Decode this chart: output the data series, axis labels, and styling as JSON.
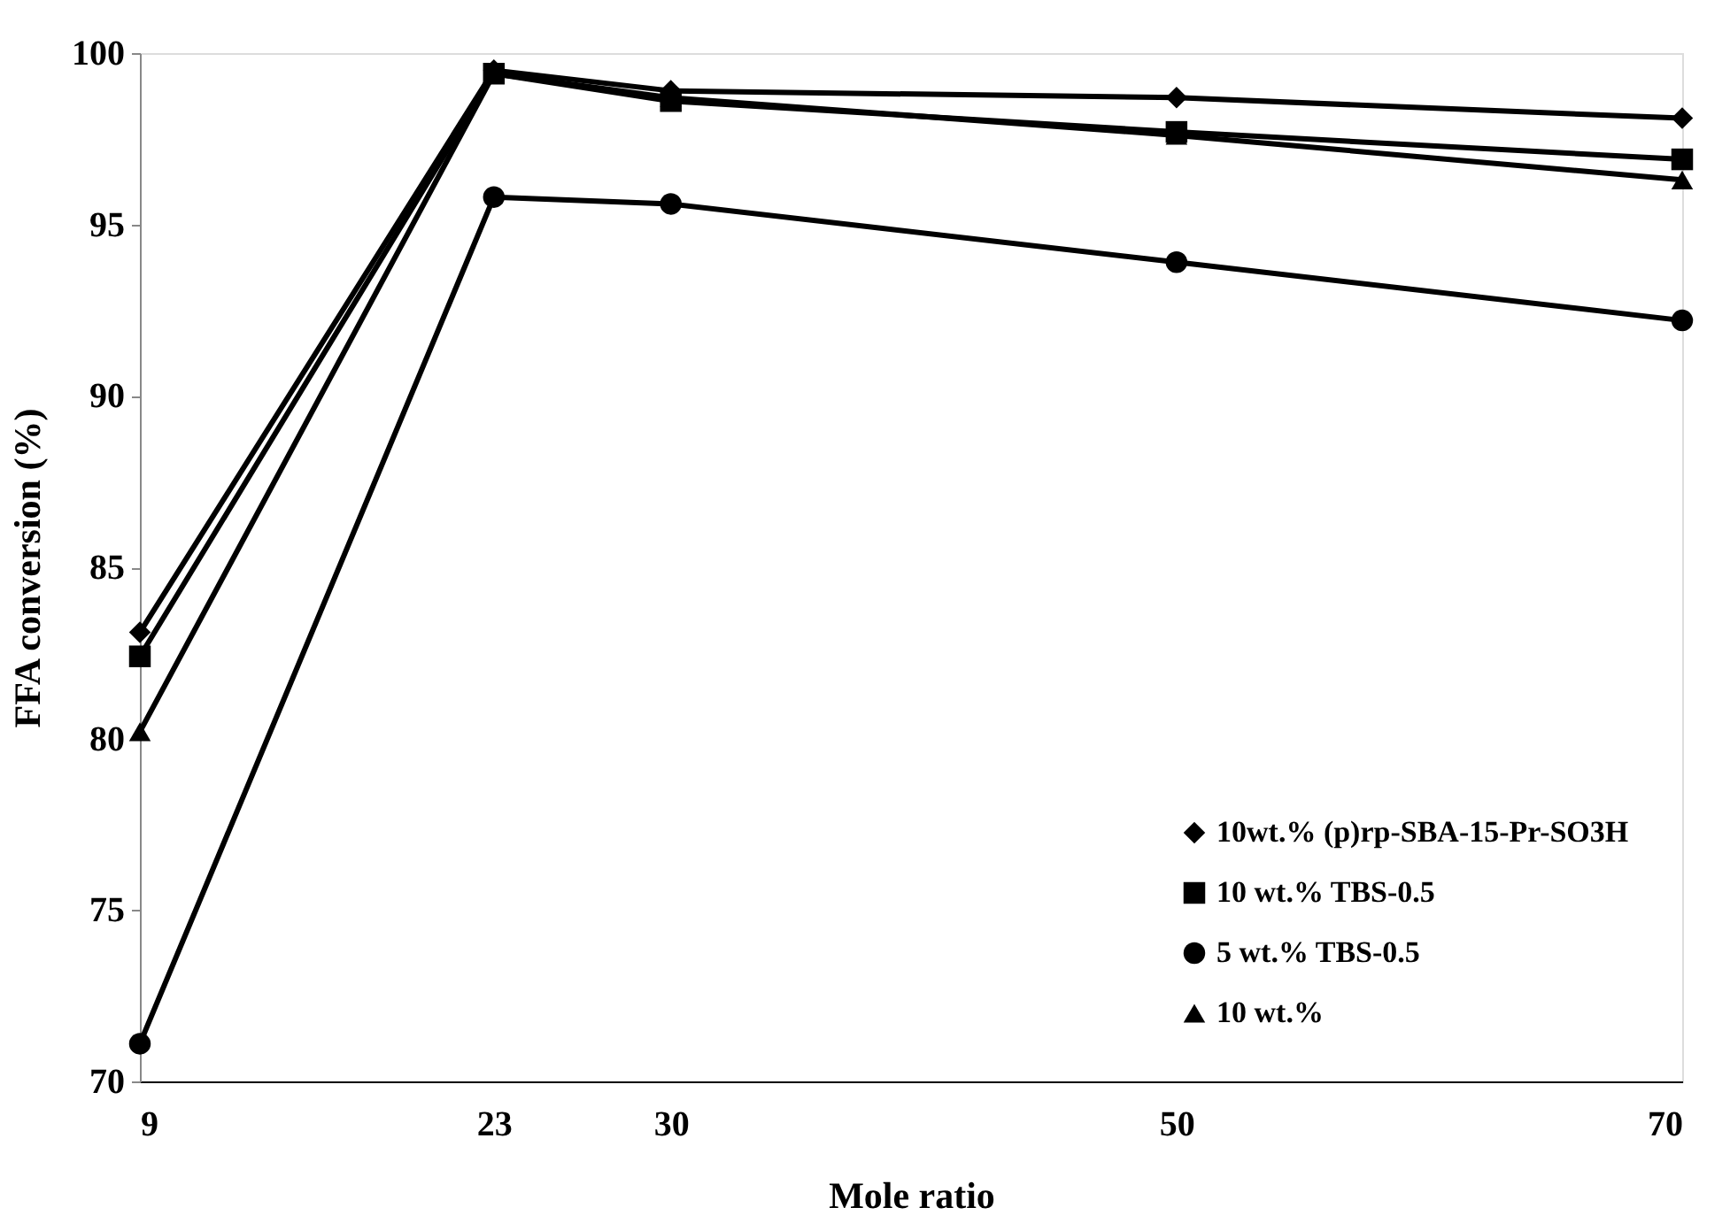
{
  "chart_data": {
    "type": "line",
    "xlabel": "Mole ratio",
    "ylabel": "FFA conversion (%)",
    "x": [
      9,
      23,
      30,
      50,
      70
    ],
    "xlim": [
      9,
      70
    ],
    "xticks": [
      9,
      23,
      30,
      50,
      70
    ],
    "ylim": [
      70,
      100
    ],
    "yticks": [
      70,
      75,
      80,
      85,
      90,
      95,
      100
    ],
    "grid": false,
    "legend": "bottom right",
    "line_style": "solid",
    "series": [
      {
        "name": "10wt.% (p)rp-SBA-15-Pr-SO3H",
        "color": "#000000",
        "marker": "diamond",
        "values": [
          83.1,
          99.5,
          98.9,
          98.7,
          98.1
        ]
      },
      {
        "name": "10 wt.% TBS-0.5",
        "color": "#000000",
        "marker": "square",
        "values": [
          82.4,
          99.4,
          98.6,
          97.7,
          96.9
        ]
      },
      {
        "name": "5 wt.% TBS-0.5",
        "color": "#000000",
        "marker": "circle",
        "values": [
          71.1,
          95.8,
          95.6,
          93.9,
          92.2
        ]
      },
      {
        "name": "10 wt.%",
        "color": "#000000",
        "marker": "triangle",
        "values": [
          80.2,
          99.4,
          98.7,
          97.6,
          96.3
        ]
      }
    ]
  }
}
